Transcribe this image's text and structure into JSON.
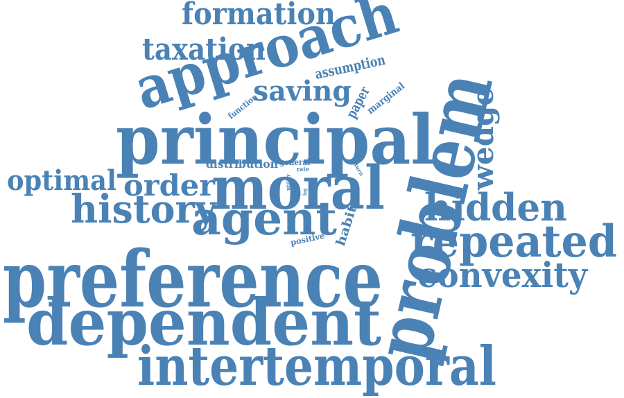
{
  "colors": {
    "word": "#4a82b5",
    "background": "#ffffff"
  },
  "words": {
    "formation": "formation",
    "taxation": "taxation",
    "approach": "approach",
    "assumption": "assumption",
    "saving": "saving",
    "function": "function",
    "paper": "paper",
    "marginal": "marginal",
    "principal": "principal",
    "problem": "problem",
    "wedge": "wedge",
    "distribution": "distribution",
    "general": "general",
    "rate": "rate",
    "return": "return",
    "utility": "utility",
    "log": "log",
    "optimal": "optimal",
    "order": "order",
    "moral": "moral",
    "history": "history",
    "agent": "agent",
    "habit": "habit",
    "positive": "positive",
    "hidden": "hidden",
    "repeated": "repeated",
    "preference": "preference",
    "convexity": "convexity",
    "dependent": "dependent",
    "intertemporal": "intertemporal"
  }
}
